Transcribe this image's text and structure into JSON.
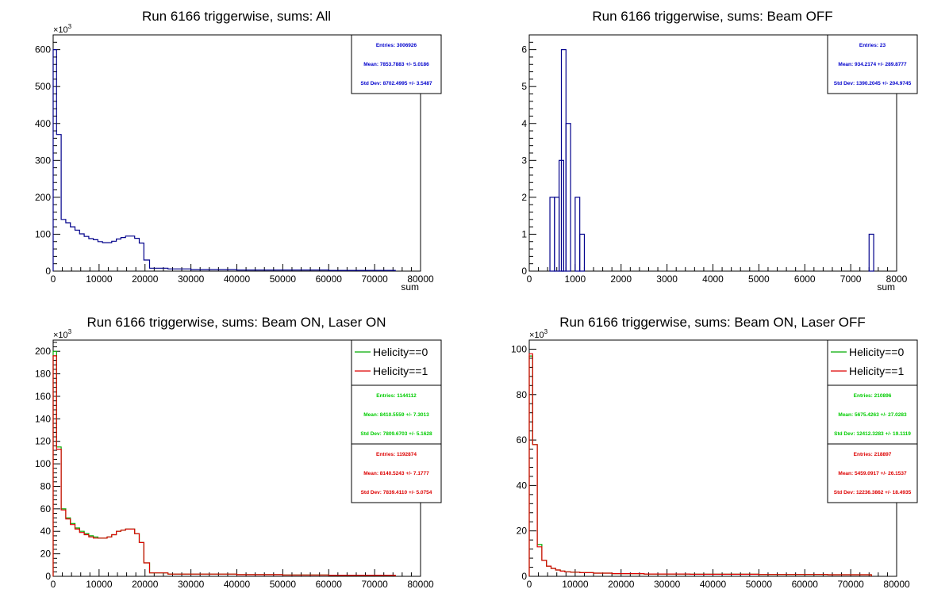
{
  "panels": [
    {
      "title": "Run 6166 triggerwise, sums: All",
      "multiplier": "×10",
      "multiplier_exp": "3",
      "xlabel": "sum",
      "chart_data": {
        "type": "histogram",
        "title": "Run 6166 triggerwise, sums: All",
        "xlabel": "sum",
        "ylabel": "",
        "xlim": [
          0,
          80000
        ],
        "ylim": [
          0,
          640
        ],
        "xticks": [
          0,
          10000,
          20000,
          30000,
          40000,
          50000,
          60000,
          70000,
          80000
        ],
        "yticks": [
          0,
          100,
          200,
          300,
          400,
          500,
          600
        ],
        "series": [
          {
            "color": "#00008b",
            "x": [
              0,
              750,
              1750,
              2750,
              3750,
              4750,
              5750,
              6750,
              7750,
              8750,
              9750,
              10750,
              11750,
              12750,
              13750,
              14750,
              15750,
              16750,
              17750,
              18750,
              19750,
              21000,
              25000,
              30000,
              40000,
              50000,
              60000,
              70000,
              74500
            ],
            "values": [
              600,
              370,
              140,
              131,
              120,
              111,
              101,
              94,
              88,
              85,
              80,
              77,
              77,
              81,
              87,
              91,
              95,
              95,
              89,
              76,
              30,
              8,
              6,
              4,
              3,
              3,
              2,
              2,
              0
            ]
          }
        ],
        "stats": [
          {
            "entries": "Entries: 3006926",
            "mean": "Mean: 7853.7883 +/- 5.0186",
            "std": "Std Dev: 8702.4995 +/- 3.5487",
            "color": "#0000cc"
          }
        ]
      }
    },
    {
      "title": "Run 6166 triggerwise, sums: Beam OFF",
      "multiplier": "",
      "multiplier_exp": "",
      "xlabel": "sum",
      "chart_data": {
        "type": "histogram",
        "title": "Run 6166 triggerwise, sums: Beam OFF",
        "xlabel": "sum",
        "ylabel": "",
        "xlim": [
          0,
          8000
        ],
        "ylim": [
          0,
          6.4
        ],
        "xticks": [
          0,
          1000,
          2000,
          3000,
          4000,
          5000,
          6000,
          7000,
          8000
        ],
        "yticks": [
          0,
          1,
          2,
          3,
          4,
          5,
          6
        ],
        "series": [
          {
            "color": "#00008b",
            "bins": [
              {
                "x": 450,
                "w": 100,
                "v": 2
              },
              {
                "x": 550,
                "w": 100,
                "v": 2
              },
              {
                "x": 650,
                "w": 100,
                "v": 3
              },
              {
                "x": 700,
                "w": 100,
                "v": 6
              },
              {
                "x": 800,
                "w": 100,
                "v": 4
              },
              {
                "x": 1000,
                "w": 100,
                "v": 2
              },
              {
                "x": 1100,
                "w": 100,
                "v": 1
              },
              {
                "x": 7400,
                "w": 100,
                "v": 1
              }
            ]
          }
        ],
        "stats": [
          {
            "entries": "Entries: 23",
            "mean": "Mean: 934.2174 +/- 289.8777",
            "std": "Std Dev: 1390.2045 +/- 204.9745",
            "color": "#0000cc"
          }
        ]
      }
    },
    {
      "title": "Run 6166 triggerwise, sums: Beam ON, Laser ON",
      "multiplier": "×10",
      "multiplier_exp": "3",
      "xlabel": "",
      "chart_data": {
        "type": "histogram",
        "title": "Run 6166 triggerwise, sums: Beam ON, Laser ON",
        "xlabel": "",
        "ylabel": "",
        "xlim": [
          0,
          80000
        ],
        "ylim": [
          0,
          210
        ],
        "xticks": [
          0,
          10000,
          20000,
          30000,
          40000,
          50000,
          60000,
          70000,
          80000
        ],
        "yticks": [
          0,
          20,
          40,
          60,
          80,
          100,
          120,
          140,
          160,
          180,
          200
        ],
        "legend": [
          "Helicity==0",
          "Helicity==1"
        ],
        "series": [
          {
            "name": "Helicity==0",
            "color": "#00aa00",
            "x": [
              0,
              750,
              1750,
              2750,
              3750,
              4750,
              5750,
              6750,
              7750,
              8750,
              9750,
              10750,
              11750,
              12750,
              13750,
              14750,
              15750,
              16750,
              17750,
              18750,
              19750,
              21000,
              25000,
              30000,
              40000,
              50000,
              60000,
              70000,
              74500
            ],
            "values": [
              200,
              115,
              60,
              52,
              47,
              43,
              40,
              38,
              36,
              35,
              34,
              34,
              35,
              37,
              40,
              41,
              42,
              42,
              38,
              30,
              12,
              3,
              2,
              2,
              1.5,
              1.2,
              1,
              1,
              0
            ]
          },
          {
            "name": "Helicity==1",
            "color": "#dd0000",
            "x": [
              0,
              750,
              1750,
              2750,
              3750,
              4750,
              5750,
              6750,
              7750,
              8750,
              9750,
              10750,
              11750,
              12750,
              13750,
              14750,
              15750,
              16750,
              17750,
              18750,
              19750,
              21000,
              25000,
              30000,
              40000,
              50000,
              60000,
              70000,
              74500
            ],
            "values": [
              196,
              113,
              59,
              51,
              46,
              42,
              39,
              37,
              35,
              34,
              34,
              34,
              35,
              37,
              40,
              41,
              42,
              42,
              38,
              30,
              12,
              3,
              2,
              2,
              1.5,
              1.2,
              1,
              1,
              0
            ]
          }
        ],
        "stats": [
          {
            "entries": "Entries: 1144112",
            "mean": "Mean: 8410.5559 +/- 7.3013",
            "std": "Std Dev: 7809.6703 +/- 5.1628",
            "color": "#00cc00"
          },
          {
            "entries": "Entries: 1192874",
            "mean": "Mean: 8140.5243 +/- 7.1777",
            "std": "Std Dev: 7839.4110 +/- 5.0754",
            "color": "#dd0000"
          }
        ]
      }
    },
    {
      "title": "Run 6166 triggerwise, sums: Beam ON, Laser OFF",
      "multiplier": "×10",
      "multiplier_exp": "3",
      "xlabel": "",
      "chart_data": {
        "type": "histogram",
        "title": "Run 6166 triggerwise, sums: Beam ON, Laser OFF",
        "xlabel": "",
        "ylabel": "",
        "xlim": [
          0,
          80000
        ],
        "ylim": [
          0,
          104
        ],
        "xticks": [
          0,
          10000,
          20000,
          30000,
          40000,
          50000,
          60000,
          70000,
          80000
        ],
        "yticks": [
          0,
          20,
          40,
          60,
          80,
          100
        ],
        "legend": [
          "Helicity==0",
          "Helicity==1"
        ],
        "series": [
          {
            "name": "Helicity==0",
            "color": "#00aa00",
            "x": [
              0,
              750,
              1750,
              2750,
              3750,
              4750,
              5750,
              6750,
              7750,
              9000,
              11000,
              14000,
              18000,
              25000,
              35000,
              50000,
              65000,
              74500
            ],
            "values": [
              97,
              58,
              14,
              7,
              4.5,
              3.5,
              2.8,
              2.3,
              2,
              1.8,
              1.6,
              1.4,
              1.2,
              1,
              0.9,
              0.8,
              0.7,
              0
            ]
          },
          {
            "name": "Helicity==1",
            "color": "#dd0000",
            "x": [
              0,
              750,
              1750,
              2750,
              3750,
              4750,
              5750,
              6750,
              7750,
              9000,
              11000,
              14000,
              18000,
              25000,
              35000,
              50000,
              65000,
              74500
            ],
            "values": [
              98,
              58,
              13,
              7,
              4.5,
              3.5,
              2.8,
              2.3,
              2,
              1.8,
              1.6,
              1.4,
              1.2,
              1,
              0.9,
              0.8,
              0.7,
              0
            ]
          }
        ],
        "stats": [
          {
            "entries": "Entries: 210896",
            "mean": "Mean: 5675.4263 +/- 27.0283",
            "std": "Std Dev: 12412.3283 +/- 19.1119",
            "color": "#00cc00"
          },
          {
            "entries": "Entries: 218897",
            "mean": "Mean: 5459.0917 +/- 26.1537",
            "std": "Std Dev: 12236.3862 +/- 18.4935",
            "color": "#dd0000"
          }
        ]
      }
    }
  ]
}
